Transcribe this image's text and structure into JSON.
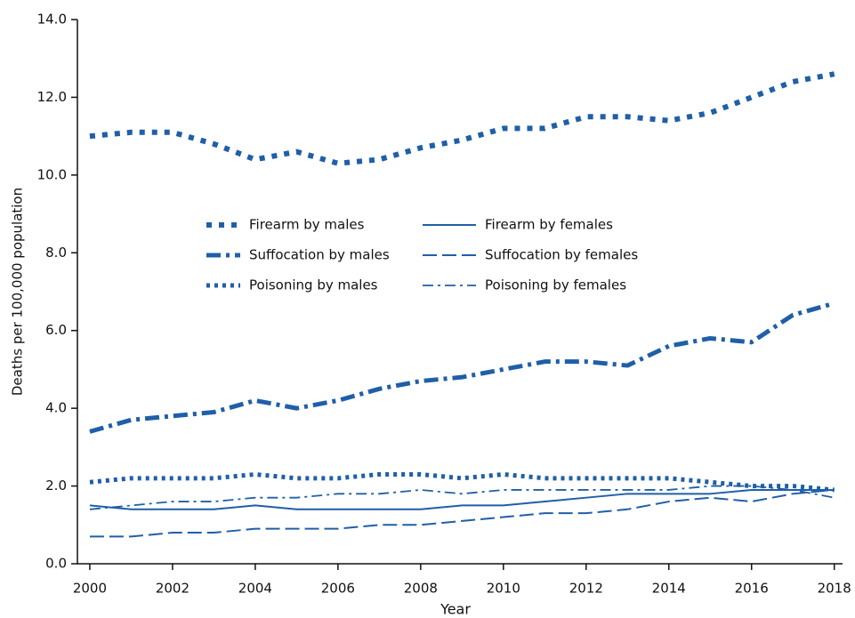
{
  "chart_data": {
    "type": "line",
    "x_label": "Year",
    "y_label": "Deaths per 100,000 population",
    "x": [
      2000,
      2001,
      2002,
      2003,
      2004,
      2005,
      2006,
      2007,
      2008,
      2009,
      2010,
      2011,
      2012,
      2013,
      2014,
      2015,
      2016,
      2017,
      2018
    ],
    "xlim": [
      1999.7,
      2018.2
    ],
    "xticks": [
      2000,
      2002,
      2004,
      2006,
      2008,
      2010,
      2012,
      2014,
      2016,
      2018
    ],
    "ylim": [
      0,
      14
    ],
    "yticks": [
      {
        "value": 0,
        "label": "0.0"
      },
      {
        "value": 2,
        "label": "2.0"
      },
      {
        "value": 4,
        "label": "4.0"
      },
      {
        "value": 6,
        "label": "6.0"
      },
      {
        "value": 8,
        "label": "8.0"
      },
      {
        "value": 10,
        "label": "10.0"
      },
      {
        "value": 12,
        "label": "12.0"
      },
      {
        "value": 14,
        "label": "14.0"
      }
    ],
    "grid": false,
    "series": [
      {
        "name": "Firearm by males",
        "color": "#1f5fa8",
        "dash": "square-dash",
        "values": [
          11.0,
          11.1,
          11.1,
          10.8,
          10.4,
          10.6,
          10.3,
          10.4,
          10.7,
          10.9,
          11.2,
          11.2,
          11.5,
          11.5,
          11.4,
          11.6,
          12.0,
          12.4,
          12.6
        ]
      },
      {
        "name": "Suffocation by males",
        "color": "#1f5fa8",
        "dash": "heavy-dash-dot",
        "values": [
          3.4,
          3.7,
          3.8,
          3.9,
          4.2,
          4.0,
          4.2,
          4.5,
          4.7,
          4.8,
          5.0,
          5.2,
          5.2,
          5.1,
          5.6,
          5.8,
          5.7,
          6.4,
          6.7
        ]
      },
      {
        "name": "Poisoning by males",
        "color": "#1f5fa8",
        "dash": "dot",
        "values": [
          2.1,
          2.2,
          2.2,
          2.2,
          2.3,
          2.2,
          2.2,
          2.3,
          2.3,
          2.2,
          2.3,
          2.2,
          2.2,
          2.2,
          2.2,
          2.1,
          2.0,
          2.0,
          1.9
        ]
      },
      {
        "name": "Firearm by females",
        "color": "#1f5fa8",
        "dash": "solid",
        "values": [
          1.5,
          1.4,
          1.4,
          1.4,
          1.5,
          1.4,
          1.4,
          1.4,
          1.4,
          1.5,
          1.5,
          1.6,
          1.7,
          1.8,
          1.8,
          1.8,
          1.9,
          1.9,
          1.9
        ]
      },
      {
        "name": "Suffocation by females",
        "color": "#1f5fa8",
        "dash": "long-dash",
        "values": [
          0.7,
          0.7,
          0.8,
          0.8,
          0.9,
          0.9,
          0.9,
          1.0,
          1.0,
          1.1,
          1.2,
          1.3,
          1.3,
          1.4,
          1.6,
          1.7,
          1.6,
          1.8,
          1.9
        ]
      },
      {
        "name": "Poisoning by females",
        "color": "#1f5fa8",
        "dash": "thin-dash-dot",
        "values": [
          1.4,
          1.5,
          1.6,
          1.6,
          1.7,
          1.7,
          1.8,
          1.8,
          1.9,
          1.8,
          1.9,
          1.9,
          1.9,
          1.9,
          1.9,
          2.0,
          2.0,
          1.9,
          1.7
        ]
      }
    ]
  }
}
